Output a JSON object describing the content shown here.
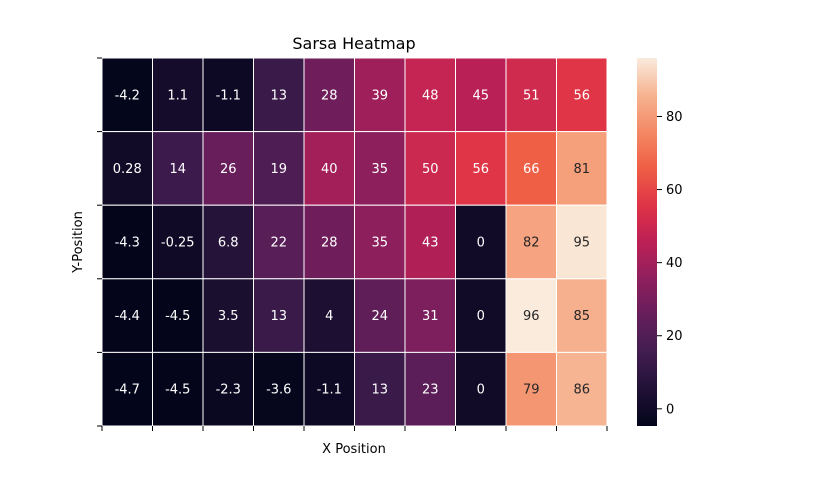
{
  "chart_data": {
    "type": "heatmap",
    "title": "Sarsa Heatmap",
    "xlabel": "X Position",
    "ylabel": "Y-Position",
    "values": [
      [
        -4.2,
        1.1,
        -1.1,
        13,
        28,
        39,
        48,
        45,
        51,
        56
      ],
      [
        0.28,
        14,
        26,
        19,
        40,
        35,
        50,
        56,
        66,
        81
      ],
      [
        -4.3,
        -0.25,
        6.8,
        22,
        28,
        35,
        43,
        0,
        82,
        95
      ],
      [
        -4.4,
        -4.5,
        3.5,
        13,
        4,
        24,
        31,
        0,
        96,
        85
      ],
      [
        -4.7,
        -4.5,
        -2.3,
        -3.6,
        -1.1,
        13,
        23,
        0,
        79,
        86
      ]
    ],
    "labels": [
      [
        "-4.2",
        "1.1",
        "-1.1",
        "13",
        "28",
        "39",
        "48",
        "45",
        "51",
        "56"
      ],
      [
        "0.28",
        "14",
        "26",
        "19",
        "40",
        "35",
        "50",
        "56",
        "66",
        "81"
      ],
      [
        "-4.3",
        "-0.25",
        "6.8",
        "22",
        "28",
        "35",
        "43",
        "0",
        "82",
        "95"
      ],
      [
        "-4.4",
        "-4.5",
        "3.5",
        "13",
        "4",
        "24",
        "31",
        "0",
        "96",
        "85"
      ],
      [
        "-4.7",
        "-4.5",
        "-2.3",
        "-3.6",
        "-1.1",
        "13",
        "23",
        "0",
        "79",
        "86"
      ]
    ],
    "vmin": -4.7,
    "vmax": 96,
    "colormap": "rocket",
    "colorbar_ticks": [
      0,
      20,
      40,
      60,
      80
    ],
    "colorbar_tick_labels": [
      "0",
      "20",
      "40",
      "60",
      "80"
    ],
    "x_tick_labels": [],
    "y_tick_labels": []
  }
}
